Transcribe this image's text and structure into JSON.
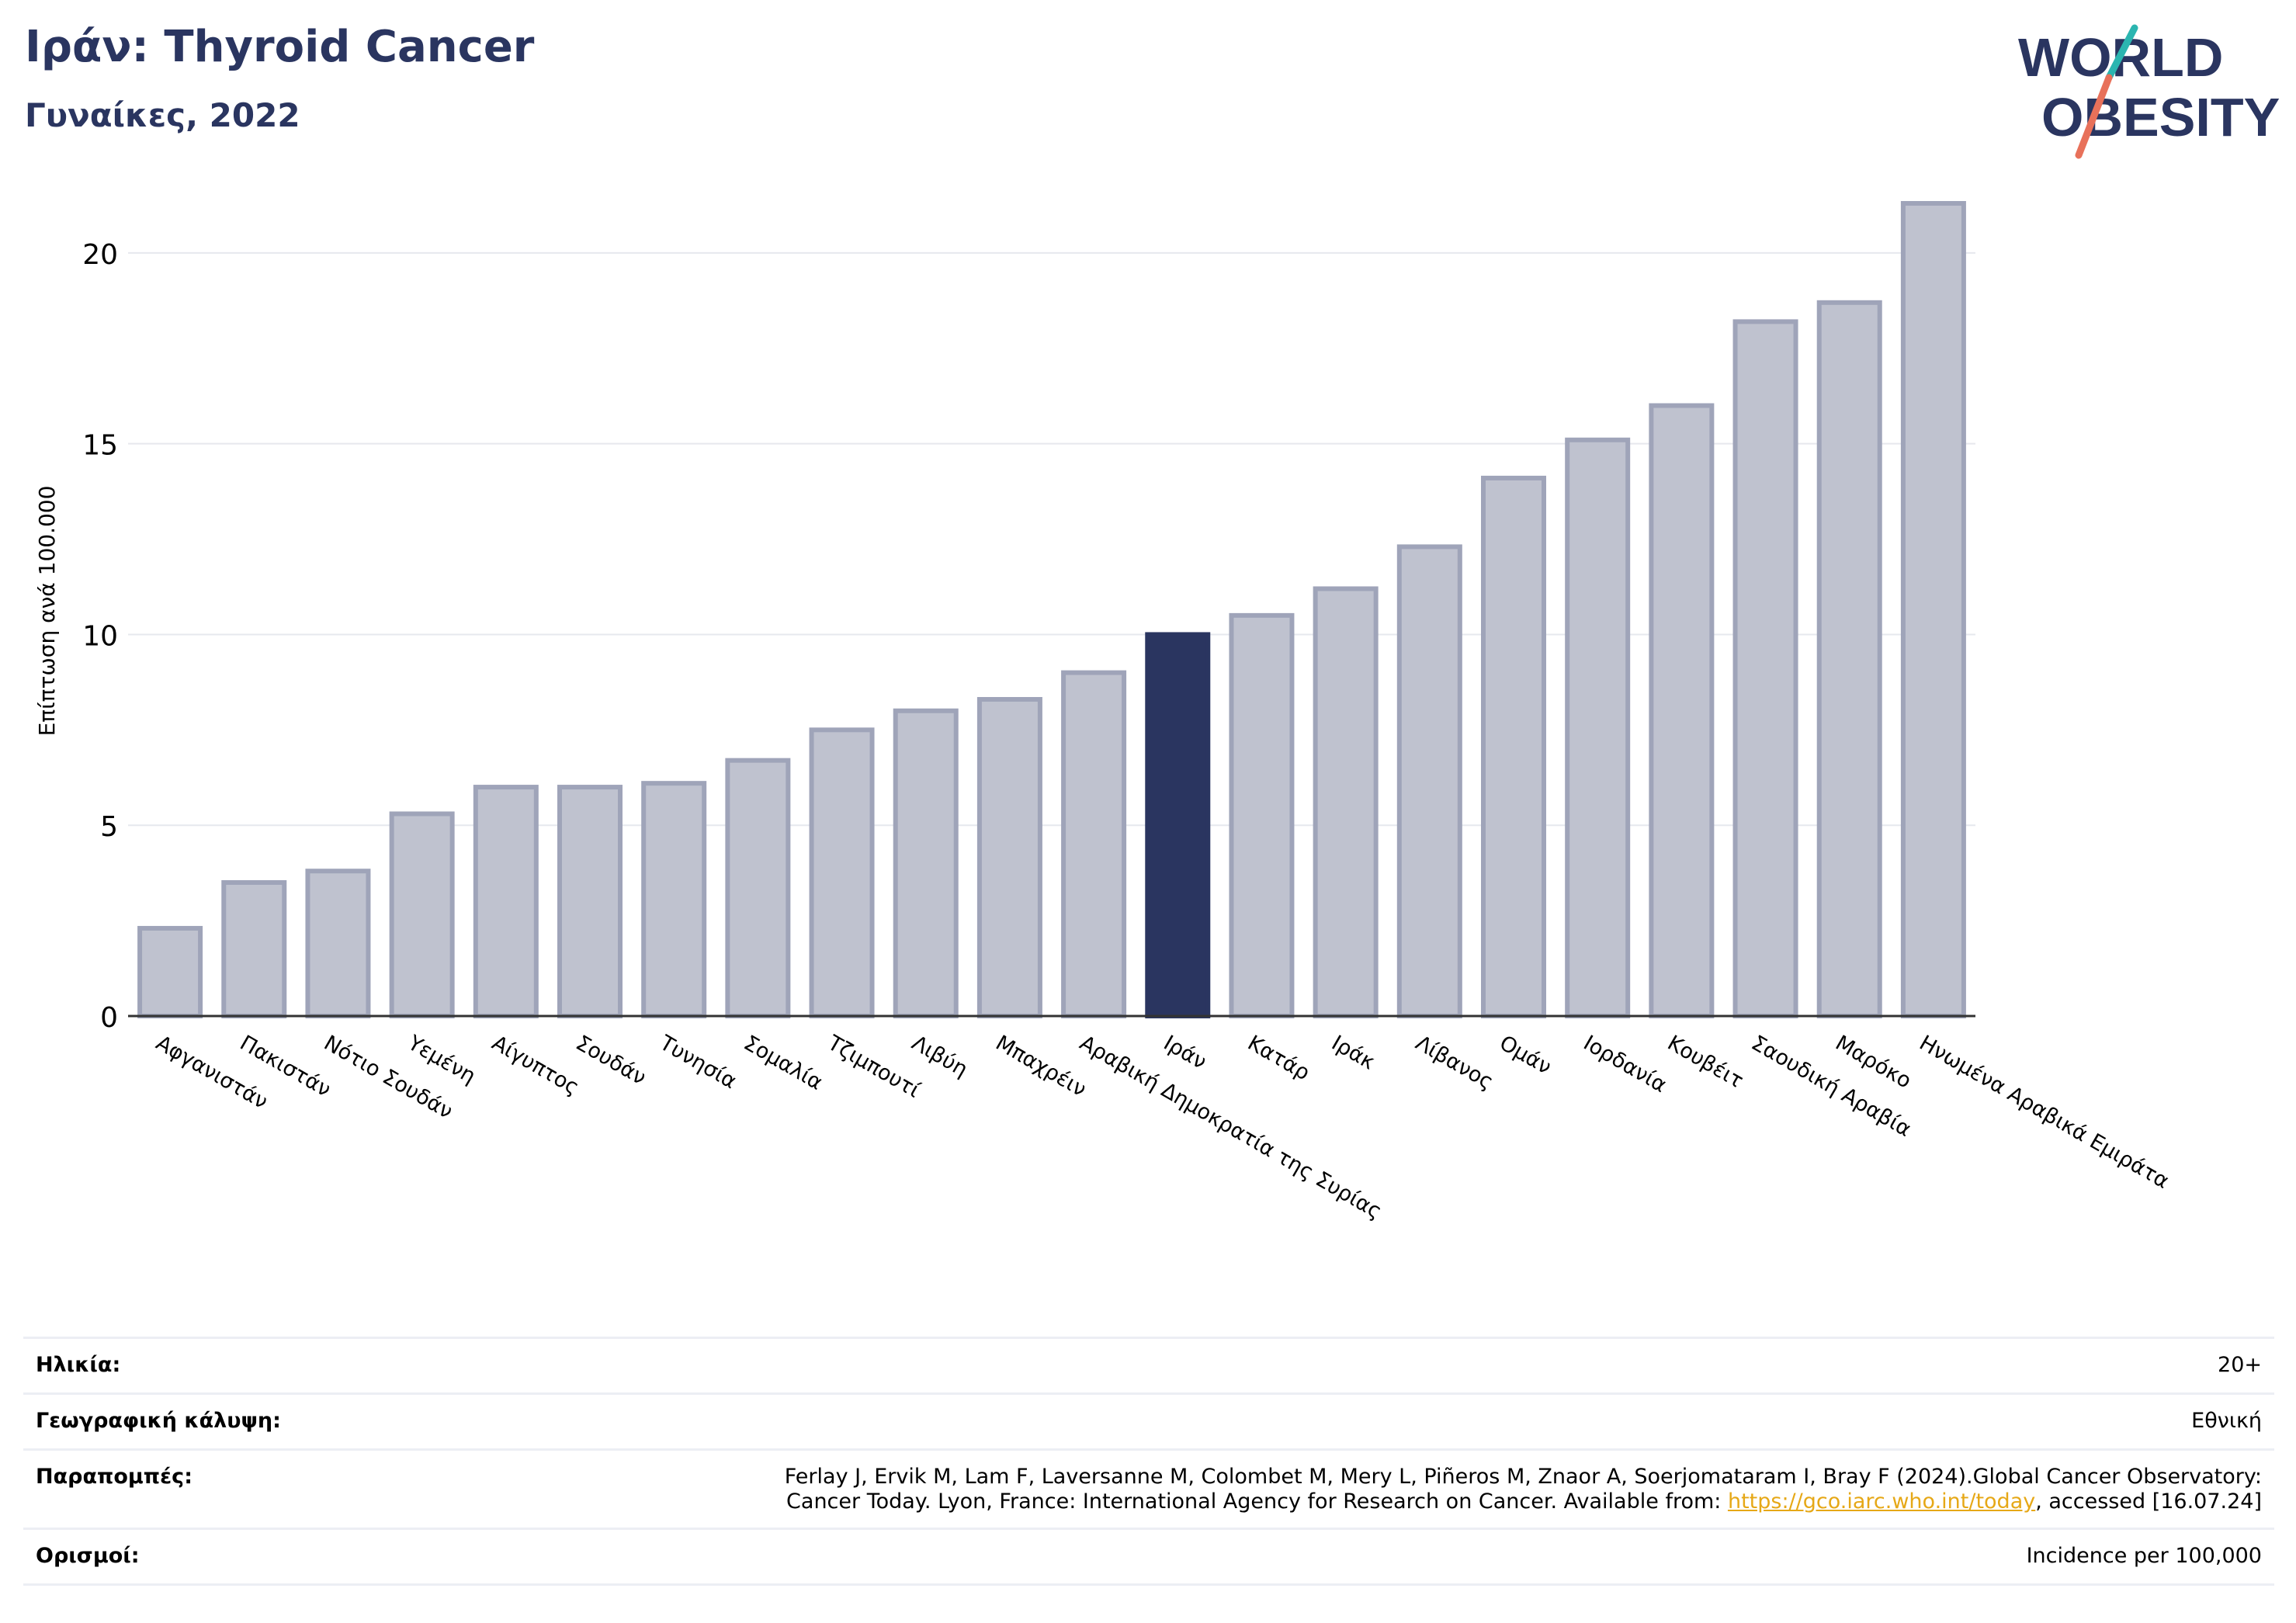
{
  "header": {
    "title": "Ιράν: Thyroid Cancer",
    "subtitle": "Γυναίκες, 2022"
  },
  "logo": {
    "line1": "WORLD",
    "line2": "OBESITY",
    "colors": {
      "text": "#2a3560",
      "slash_top": "#2bb5b0",
      "slash_bottom": "#e8715a"
    }
  },
  "chart_data": {
    "type": "bar",
    "ylabel": "Επίπτωση ανά 100.000",
    "ylim": [
      0,
      21.3
    ],
    "yticks": [
      0,
      5,
      10,
      15,
      20
    ],
    "grid": true,
    "highlight": "Ιράν",
    "colors": {
      "bar": "#bfc2cf",
      "bar_edge": "#9fa4b9",
      "highlight": "#2a3560",
      "grid": "#e6e8ee",
      "axis": "#333333"
    },
    "categories": [
      "Αφγανιστάν",
      "Πακιστάν",
      "Νότιο Σουδάν",
      "Υεμένη",
      "Αίγυπτος",
      "Σουδάν",
      "Τυνησία",
      "Σομαλία",
      "Τζιμπουτί",
      "Λιβύη",
      "Μπαχρέιν",
      "Αραβική Δημοκρατία της Συρίας",
      "Ιράν",
      "Κατάρ",
      "Ιράκ",
      "Λίβανος",
      "Ομάν",
      "Ιορδανία",
      "Κουβέιτ",
      "Σαουδική Αραβία",
      "Μαρόκο",
      "Ηνωμένα Αραβικά Εμιράτα"
    ],
    "values": [
      2.3,
      3.5,
      3.8,
      5.3,
      6.0,
      6.0,
      6.1,
      6.7,
      7.5,
      8.0,
      8.3,
      9.0,
      10.0,
      10.5,
      11.2,
      12.3,
      14.1,
      15.1,
      16.0,
      18.2,
      18.7,
      21.3
    ]
  },
  "meta": {
    "age_label": "Ηλικία:",
    "age_value": "20+",
    "coverage_label": "Γεωγραφική κάλυψη:",
    "coverage_value": "Εθνική",
    "refs_label": "Παραπομπές:",
    "refs_line1": "Ferlay J, Ervik M, Lam F, Laversanne M, Colombet M, Mery L, Piñeros M, Znaor A, Soerjomataram I, Bray F (2024).Global Cancer Observatory:",
    "refs_line2_pre": "Cancer Today. Lyon, France: International Agency for Research on Cancer. Available from: ",
    "refs_link": "https://gco.iarc.who.int/today",
    "refs_line2_post": ", accessed [16.07.24]",
    "defs_label": "Ορισμοί:",
    "defs_value": "Incidence per 100,000"
  }
}
